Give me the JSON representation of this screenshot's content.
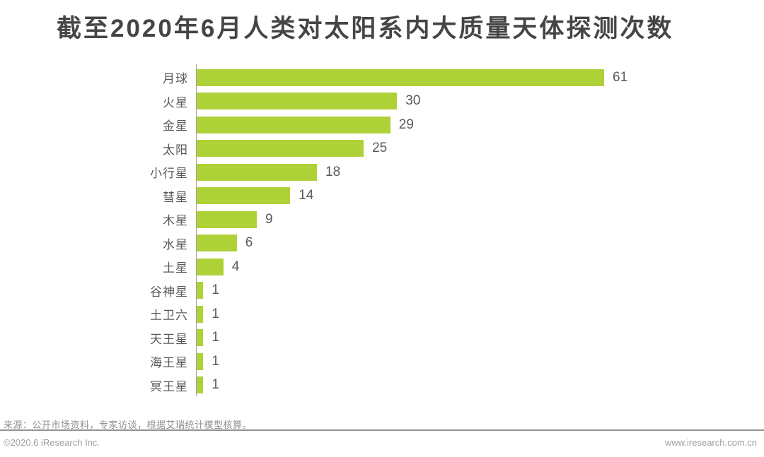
{
  "title": "截至2020年6月人类对太阳系内大质量天体探测次数",
  "chart_data": {
    "type": "bar",
    "orientation": "horizontal",
    "title": "截至2020年6月人类对太阳系内大质量天体探测次数",
    "categories": [
      "月球",
      "火星",
      "金星",
      "太阳",
      "小行星",
      "彗星",
      "木星",
      "水星",
      "土星",
      "谷神星",
      "土卫六",
      "天王星",
      "海王星",
      "冥王星"
    ],
    "values": [
      61,
      30,
      29,
      25,
      18,
      14,
      9,
      6,
      4,
      1,
      1,
      1,
      1,
      1
    ],
    "xlabel": "",
    "ylabel": "",
    "xlim": [
      0,
      65
    ],
    "grid": false,
    "legend": "none",
    "value_labels": true,
    "bar_color": "#aed137",
    "axis_color": "#a0a0a0",
    "label_color": "#595959"
  },
  "footer": {
    "source": "来源：公开市场资料，专家访谈，根据艾瑞统计模型核算。",
    "copyright": "©2020.6 iResearch Inc.",
    "website": "www.iresearch.com.cn"
  },
  "colors": {
    "accent_green": "#aed137",
    "title_text": "#454545",
    "body_text": "#595959",
    "footer_text": "#9e9e9e",
    "divider": "#939393"
  }
}
